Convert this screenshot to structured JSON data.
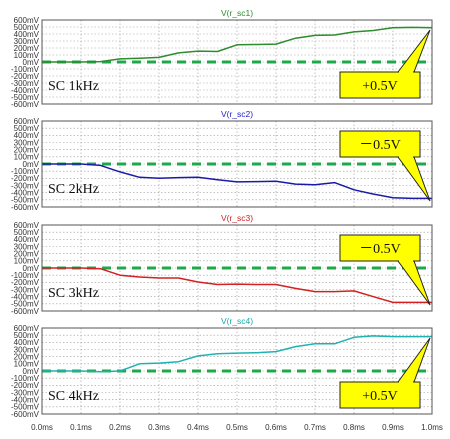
{
  "chart_data": [
    {
      "type": "line",
      "title": "V(r_sc1)",
      "title_color": "#2e8b2e",
      "series_color": "#2e8b2e",
      "label": "SC 1kHz",
      "callout": "+0.5V",
      "callout_pos": "bottom-right",
      "ylim": [
        -600,
        600
      ],
      "yticks": [
        "600mV",
        "500mV",
        "400mV",
        "300mV",
        "200mV",
        "100mV",
        "0mV",
        "-100mV",
        "-200mV",
        "-300mV",
        "-400mV",
        "-500mV",
        "-600mV"
      ],
      "zero_line": "dashed-green",
      "x": [
        0,
        0.05,
        0.1,
        0.15,
        0.2,
        0.25,
        0.3,
        0.35,
        0.4,
        0.45,
        0.5,
        0.55,
        0.6,
        0.65,
        0.7,
        0.75,
        0.8,
        0.85,
        0.9,
        0.95,
        1.0
      ],
      "values": [
        0,
        0,
        0,
        5,
        45,
        55,
        65,
        130,
        155,
        150,
        245,
        250,
        255,
        340,
        380,
        385,
        430,
        450,
        490,
        495,
        490
      ]
    },
    {
      "type": "line",
      "title": "V(r_sc2)",
      "title_color": "#2222cc",
      "series_color": "#1a1aa8",
      "label": "SC 2kHz",
      "callout": "－0.5V",
      "callout_pos": "top-right",
      "ylim": [
        -600,
        600
      ],
      "yticks": [
        "600mV",
        "500mV",
        "400mV",
        "300mV",
        "200mV",
        "100mV",
        "0mV",
        "-100mV",
        "-200mV",
        "-300mV",
        "-400mV",
        "-500mV",
        "-600mV"
      ],
      "zero_line": "dashed-green",
      "x": [
        0,
        0.05,
        0.1,
        0.15,
        0.2,
        0.25,
        0.3,
        0.35,
        0.4,
        0.45,
        0.5,
        0.55,
        0.6,
        0.65,
        0.7,
        0.75,
        0.8,
        0.85,
        0.9,
        0.95,
        1.0
      ],
      "values": [
        0,
        0,
        0,
        -20,
        -110,
        -185,
        -200,
        -190,
        -185,
        -220,
        -250,
        -245,
        -240,
        -280,
        -290,
        -260,
        -360,
        -420,
        -470,
        -480,
        -480
      ]
    },
    {
      "type": "line",
      "title": "V(r_sc3)",
      "title_color": "#cc2222",
      "series_color": "#d42020",
      "label": "SC 3kHz",
      "callout": "－0.5V",
      "callout_pos": "top-right",
      "ylim": [
        -600,
        600
      ],
      "yticks": [
        "600mV",
        "500mV",
        "400mV",
        "300mV",
        "200mV",
        "100mV",
        "0mV",
        "-100mV",
        "-200mV",
        "-300mV",
        "-400mV",
        "-500mV",
        "-600mV"
      ],
      "zero_line": "dashed-green",
      "x": [
        0,
        0.05,
        0.1,
        0.15,
        0.2,
        0.25,
        0.3,
        0.35,
        0.4,
        0.45,
        0.5,
        0.55,
        0.6,
        0.65,
        0.7,
        0.75,
        0.8,
        0.85,
        0.9,
        0.95,
        1.0
      ],
      "values": [
        0,
        0,
        0,
        -10,
        -100,
        -125,
        -140,
        -140,
        -195,
        -230,
        -225,
        -230,
        -230,
        -285,
        -330,
        -330,
        -320,
        -400,
        -480,
        -480,
        -480
      ]
    },
    {
      "type": "line",
      "title": "V(r_sc4)",
      "title_color": "#1aa8a8",
      "series_color": "#20b2b2",
      "label": "SC 4kHz",
      "callout": "+0.5V",
      "callout_pos": "bottom-right",
      "ylim": [
        -600,
        600
      ],
      "yticks": [
        "600mV",
        "500mV",
        "400mV",
        "300mV",
        "200mV",
        "100mV",
        "0mV",
        "-100mV",
        "-200mV",
        "-300mV",
        "-400mV",
        "-500mV",
        "-600mV"
      ],
      "zero_line": "dashed-green",
      "x": [
        0,
        0.05,
        0.1,
        0.15,
        0.2,
        0.25,
        0.3,
        0.35,
        0.4,
        0.45,
        0.5,
        0.55,
        0.6,
        0.65,
        0.7,
        0.75,
        0.8,
        0.85,
        0.9,
        0.95,
        1.0
      ],
      "values": [
        0,
        0,
        0,
        -10,
        0,
        100,
        110,
        130,
        210,
        240,
        250,
        255,
        270,
        340,
        380,
        380,
        470,
        490,
        480,
        480,
        480
      ]
    }
  ],
  "x_axis": {
    "ticks": [
      "0.0ms",
      "0.1ms",
      "0.2ms",
      "0.3ms",
      "0.4ms",
      "0.5ms",
      "0.6ms",
      "0.7ms",
      "0.8ms",
      "0.9ms",
      "1.0ms"
    ],
    "xlim": [
      0,
      1.0
    ]
  },
  "colors": {
    "zero_line": "#1fa84a",
    "callout_fill": "#ffff00",
    "grid": "#9a9a9a",
    "frame": "#555555"
  }
}
